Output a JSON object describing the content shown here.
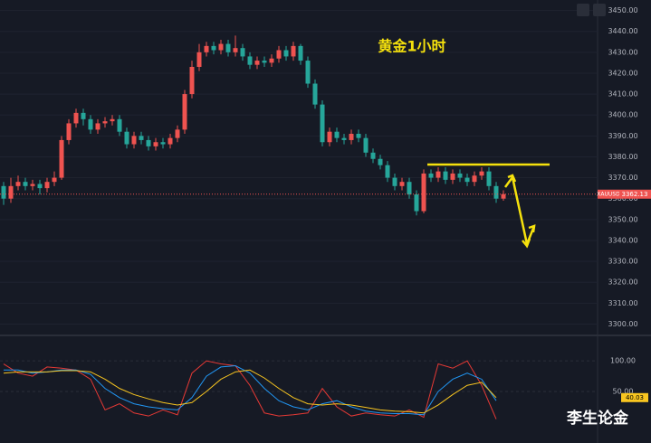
{
  "chart_data": [
    {
      "type": "candlestick",
      "title": "黄金1小时",
      "symbol": "XAUUSD",
      "up_color": "#ef5350",
      "down_color": "#26a69a",
      "open": [
        3366,
        3360,
        3366,
        3368,
        3366,
        3367,
        3365,
        3368,
        3370,
        3388,
        3396,
        3401,
        3398,
        3393,
        3396,
        3397,
        3398,
        3392,
        3386,
        3390,
        3388,
        3385,
        3387,
        3386,
        3389,
        3393,
        3410,
        3423,
        3430,
        3433,
        3431,
        3434,
        3430,
        3432,
        3428,
        3424,
        3426,
        3425,
        3427,
        3431,
        3428,
        3433,
        3426,
        3415,
        3405,
        3387,
        3392,
        3389,
        3388,
        3391,
        3389,
        3382,
        3379,
        3376,
        3370,
        3366,
        3368,
        3362,
        3354,
        3372,
        3370,
        3373,
        3369,
        3372,
        3370,
        3368,
        3371,
        3373,
        3366,
        3360
      ],
      "high": [
        3368,
        3370,
        3371,
        3370,
        3369,
        3369,
        3370,
        3373,
        3390,
        3398,
        3403,
        3403,
        3400,
        3398,
        3399,
        3400,
        3400,
        3394,
        3392,
        3392,
        3390,
        3389,
        3389,
        3391,
        3395,
        3412,
        3426,
        3434,
        3435,
        3435,
        3436,
        3436,
        3438,
        3434,
        3430,
        3428,
        3428,
        3429,
        3433,
        3433,
        3435,
        3434,
        3428,
        3417,
        3407,
        3394,
        3394,
        3391,
        3393,
        3393,
        3391,
        3384,
        3381,
        3378,
        3372,
        3370,
        3370,
        3364,
        3374,
        3374,
        3375,
        3375,
        3374,
        3374,
        3372,
        3373,
        3375,
        3375,
        3368,
        3364
      ],
      "low": [
        3357,
        3358,
        3364,
        3364,
        3364,
        3362,
        3363,
        3366,
        3369,
        3386,
        3394,
        3395,
        3391,
        3391,
        3394,
        3395,
        3390,
        3384,
        3384,
        3386,
        3383,
        3383,
        3384,
        3384,
        3387,
        3391,
        3408,
        3421,
        3428,
        3429,
        3429,
        3428,
        3428,
        3426,
        3422,
        3422,
        3423,
        3423,
        3425,
        3426,
        3426,
        3424,
        3413,
        3403,
        3385,
        3385,
        3387,
        3386,
        3386,
        3387,
        3380,
        3377,
        3374,
        3368,
        3364,
        3364,
        3360,
        3352,
        3353,
        3368,
        3368,
        3367,
        3367,
        3368,
        3366,
        3366,
        3369,
        3364,
        3358,
        3359
      ],
      "close": [
        3360,
        3366,
        3368,
        3366,
        3367,
        3365,
        3368,
        3370,
        3388,
        3396,
        3401,
        3398,
        3393,
        3396,
        3397,
        3398,
        3392,
        3386,
        3390,
        3388,
        3385,
        3387,
        3386,
        3389,
        3393,
        3410,
        3423,
        3430,
        3433,
        3431,
        3434,
        3430,
        3432,
        3428,
        3424,
        3426,
        3425,
        3427,
        3431,
        3428,
        3433,
        3426,
        3415,
        3405,
        3387,
        3392,
        3389,
        3388,
        3391,
        3389,
        3382,
        3379,
        3376,
        3370,
        3366,
        3368,
        3362,
        3354,
        3372,
        3370,
        3373,
        3369,
        3372,
        3370,
        3368,
        3371,
        3373,
        3366,
        3360,
        3362.13
      ],
      "ylim": [
        3295,
        3455
      ],
      "yticks": [
        {
          "value": 3300,
          "label": "3300.00"
        },
        {
          "value": 3310,
          "label": "3310.00"
        },
        {
          "value": 3320,
          "label": "3320.00"
        },
        {
          "value": 3330,
          "label": "3330.00"
        },
        {
          "value": 3340,
          "label": "3340.00"
        },
        {
          "value": 3350,
          "label": "3350.00"
        },
        {
          "value": 3360,
          "label": "3360.00"
        },
        {
          "value": 3370,
          "label": "3370.00"
        },
        {
          "value": 3380,
          "label": "3380.00"
        },
        {
          "value": 3390,
          "label": "3390.00"
        },
        {
          "value": 3400,
          "label": "3400.00"
        },
        {
          "value": 3410,
          "label": "3410.00"
        },
        {
          "value": 3420,
          "label": "3420.00"
        },
        {
          "value": 3430,
          "label": "3430.00"
        },
        {
          "value": 3440,
          "label": "3440.00"
        },
        {
          "value": 3450,
          "label": "3450.00"
        }
      ],
      "grid": true
    },
    {
      "type": "line",
      "ylim": [
        -34,
        140
      ],
      "yticks": [
        {
          "value": 100,
          "label": "100.00"
        },
        {
          "value": 50,
          "label": "50.00"
        }
      ],
      "series": [
        {
          "color": "#e53935",
          "values": [
            95,
            80,
            75,
            90,
            88,
            85,
            70,
            20,
            30,
            15,
            10,
            20,
            12,
            80,
            100,
            95,
            92,
            60,
            15,
            10,
            12,
            15,
            55,
            25,
            10,
            15,
            12,
            10,
            20,
            8,
            95,
            88,
            100,
            60,
            5
          ]
        },
        {
          "color": "#2196f3",
          "values": [
            85,
            85,
            80,
            82,
            85,
            85,
            78,
            55,
            40,
            30,
            25,
            22,
            20,
            40,
            75,
            90,
            92,
            80,
            55,
            35,
            25,
            20,
            30,
            35,
            25,
            18,
            15,
            14,
            14,
            12,
            50,
            70,
            80,
            70,
            35
          ]
        },
        {
          "color": "#f9c620",
          "values": [
            80,
            82,
            82,
            82,
            84,
            84,
            82,
            70,
            55,
            45,
            38,
            32,
            28,
            32,
            50,
            70,
            82,
            85,
            72,
            55,
            40,
            30,
            28,
            30,
            28,
            24,
            20,
            18,
            17,
            15,
            28,
            45,
            60,
            65,
            40.03
          ],
          "value_labels": [
            null,
            null,
            null,
            null,
            null,
            null,
            null,
            null,
            null,
            null,
            null,
            null,
            null,
            null,
            null,
            null,
            null,
            null,
            null,
            null,
            null,
            null,
            null,
            null,
            null,
            null,
            null,
            null,
            null,
            null,
            null,
            null,
            null,
            null,
            "40.03"
          ]
        }
      ]
    }
  ],
  "watermark": "李生论金"
}
